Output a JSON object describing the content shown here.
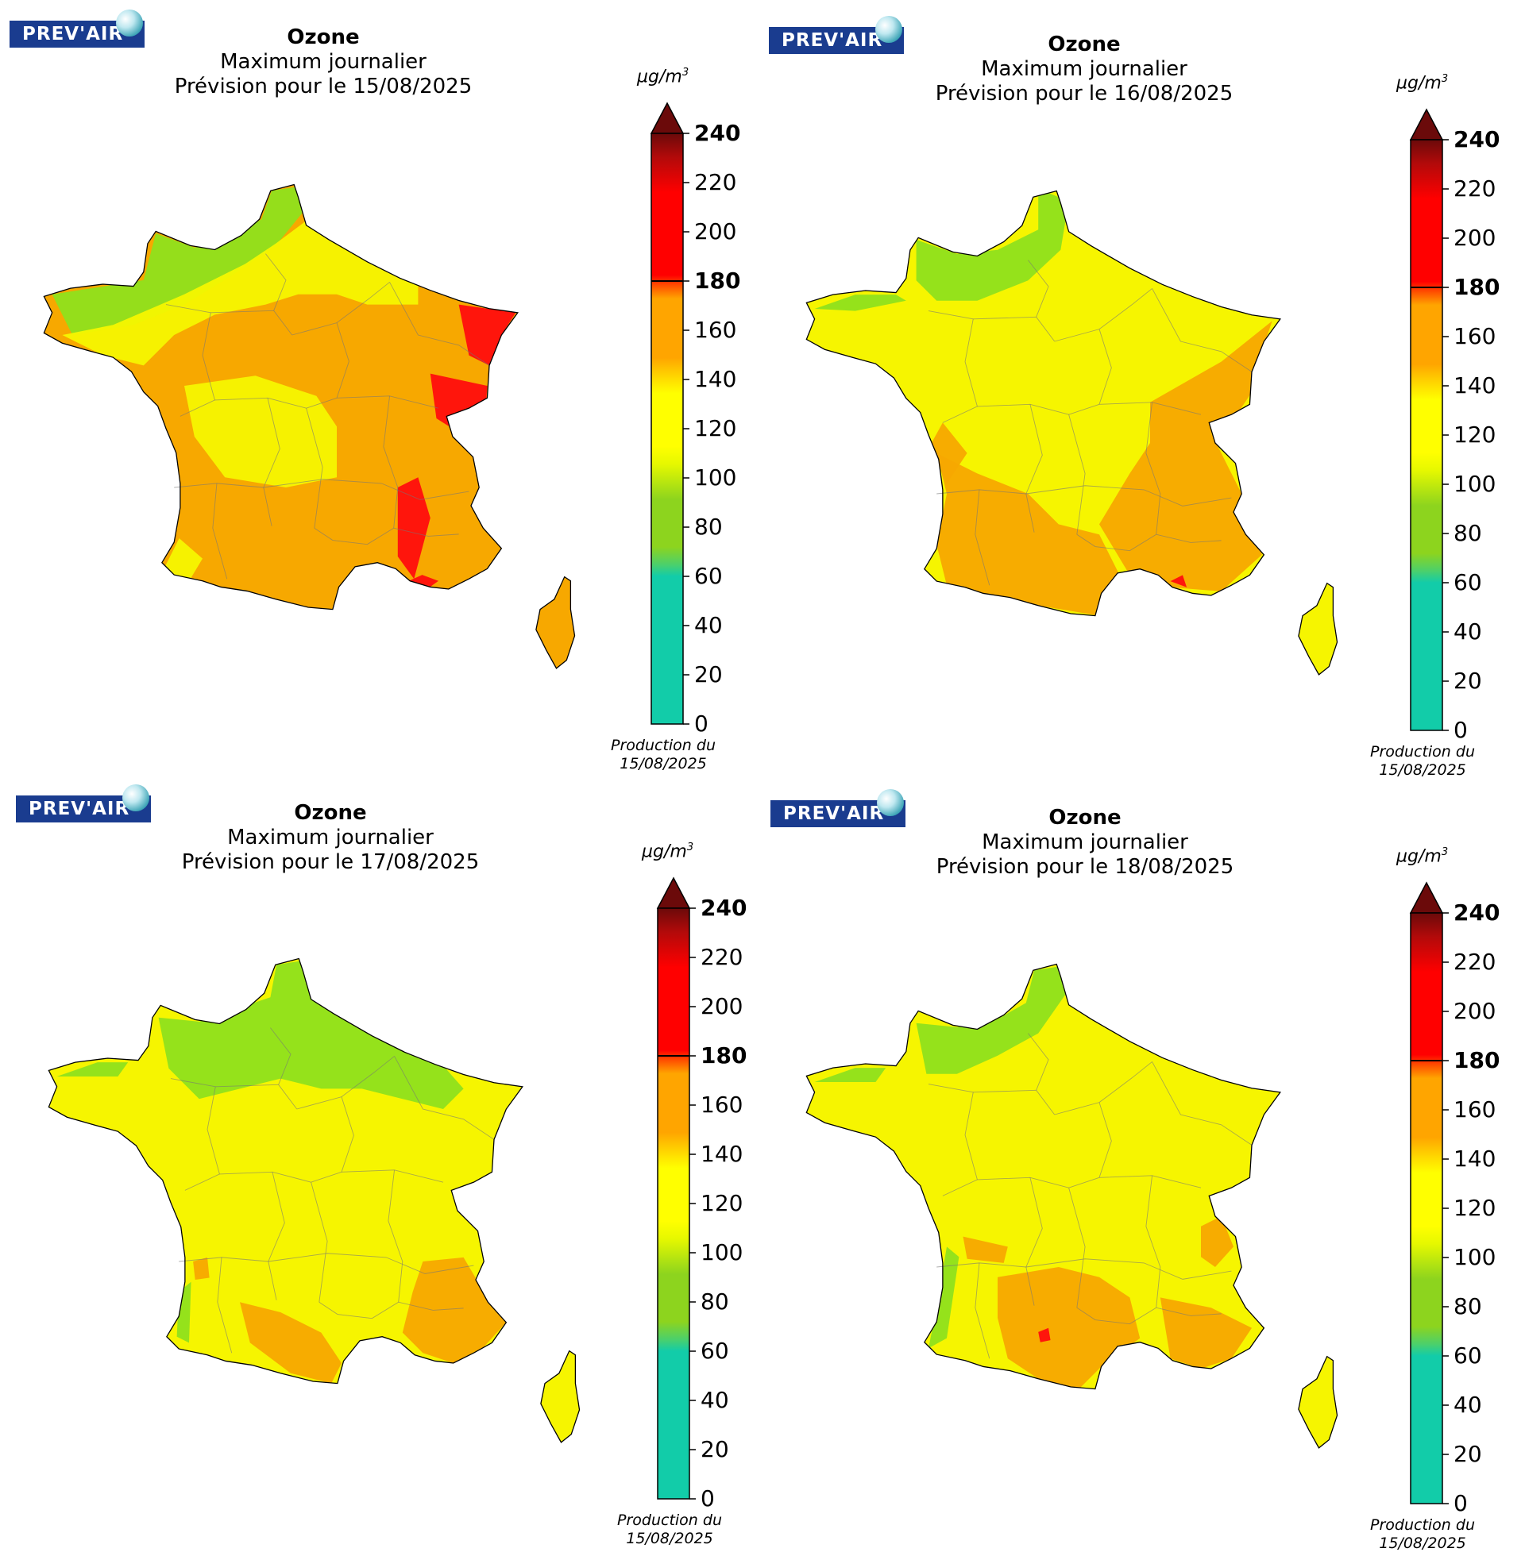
{
  "logo_text": "PREV'AIR",
  "panels": [
    {
      "title": "Ozone",
      "subtitle": "Maximum journalier",
      "date_line": "Prévision pour le 15/08/2025",
      "production_label": "Production du",
      "production_date": "15/08/2025"
    },
    {
      "title": "Ozone",
      "subtitle": "Maximum journalier",
      "date_line": "Prévision pour le 16/08/2025",
      "production_label": "Production du",
      "production_date": "15/08/2025"
    },
    {
      "title": "Ozone",
      "subtitle": "Maximum journalier",
      "date_line": "Prévision pour le 17/08/2025",
      "production_label": "Production du",
      "production_date": "15/08/2025"
    },
    {
      "title": "Ozone",
      "subtitle": "Maximum journalier",
      "date_line": "Prévision pour le 18/08/2025",
      "production_label": "Production du",
      "production_date": "15/08/2025"
    }
  ],
  "colorbar": {
    "unit_base": "µg/m",
    "unit_exp": "3",
    "ticks": [
      "0",
      "20",
      "40",
      "60",
      "80",
      "100",
      "120",
      "140",
      "160",
      "180",
      "200",
      "220",
      "240"
    ],
    "bold_ticks": [
      "180",
      "240"
    ],
    "colors": {
      "teal": "#12cca9",
      "green": "#8dd41e",
      "yellow": "#ffff00",
      "orange": "#ffa500",
      "red": "#ff0000",
      "darkred": "#6b0a0a"
    }
  },
  "map_colors": {
    "low_green": "#8fe01c",
    "yellow": "#f6f500",
    "orange": "#f7a800",
    "red": "#ff0d0d"
  }
}
